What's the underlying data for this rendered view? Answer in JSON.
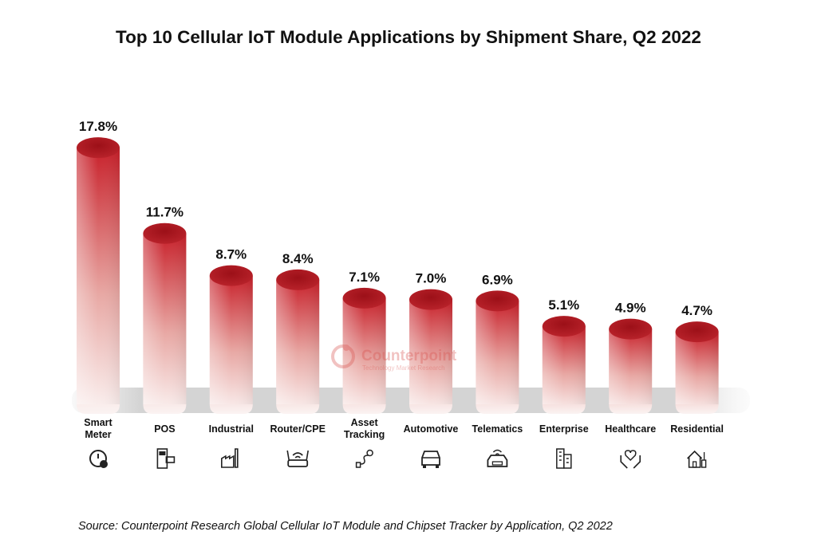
{
  "chart_data": {
    "type": "bar",
    "title": "Top 10 Cellular IoT Module Applications by Shipment Share, Q2 2022",
    "categories": [
      "Smart Meter",
      "POS",
      "Industrial",
      "Router/CPE",
      "Asset Tracking",
      "Automotive",
      "Telematics",
      "Enterprise",
      "Healthcare",
      "Residential"
    ],
    "category_icons": [
      "meter-icon",
      "pos-terminal-icon",
      "factory-icon",
      "router-icon",
      "route-pin-icon",
      "car-icon",
      "connected-car-icon",
      "building-icon",
      "heart-hands-icon",
      "smart-home-icon"
    ],
    "values": [
      17.8,
      11.7,
      8.7,
      8.4,
      7.1,
      7.0,
      6.9,
      5.1,
      4.9,
      4.7
    ],
    "data_labels": [
      "17.8%",
      "11.7%",
      "8.7%",
      "8.4%",
      "7.1%",
      "7.0%",
      "6.9%",
      "5.1%",
      "4.9%",
      "4.7%"
    ],
    "unit": "%",
    "grid": false,
    "bar_color": "#b0141e",
    "source": "Source: Counterpoint Research Global Cellular IoT Module and Chipset Tracker by Application, Q2 2022"
  },
  "watermark": {
    "name": "Counterpoint",
    "tagline": "Technology Market Research"
  }
}
